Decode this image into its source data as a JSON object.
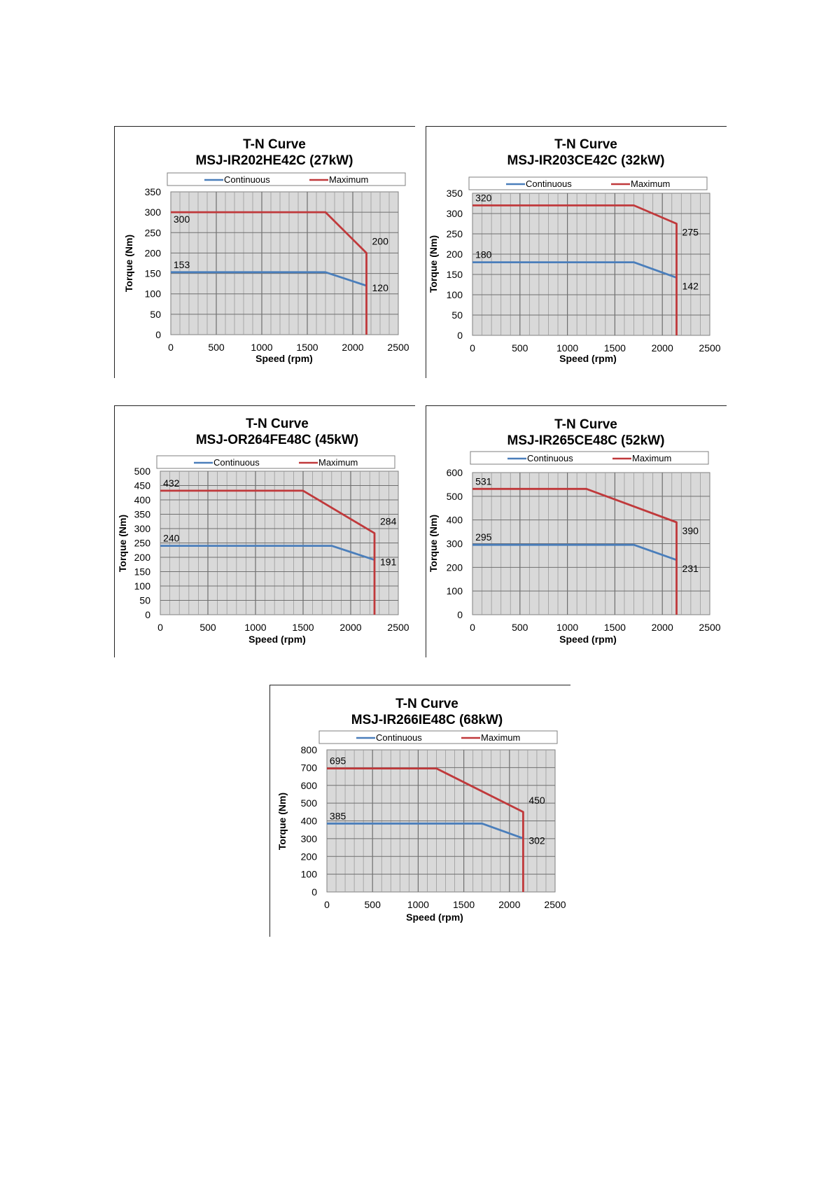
{
  "legend": {
    "continuous": "Continuous",
    "maximum": "Maximum"
  },
  "colors": {
    "continuous": "#4a7ebb",
    "maximum": "#c0393b",
    "plot_bg": "#d9d9d9",
    "grid": "#8c8c8c"
  },
  "chart_data": [
    {
      "type": "line",
      "title": "T-N Curve",
      "subtitle": "MSJ-IR202HE42C  (27kW)",
      "xlabel": "Speed (rpm)",
      "ylabel": "Torque (Nm)",
      "xlim": [
        0,
        2500
      ],
      "ylim": [
        0,
        350
      ],
      "xticks": [
        "0",
        "500",
        "1000",
        "1500",
        "2000",
        "2500"
      ],
      "yticks": [
        "0",
        "50",
        "100",
        "150",
        "200",
        "250",
        "300",
        "350"
      ],
      "series": [
        {
          "name": "Continuous",
          "x": [
            0,
            1700,
            2150
          ],
          "y": [
            153,
            153,
            120
          ]
        },
        {
          "name": "Maximum",
          "x": [
            0,
            1700,
            2150,
            2150
          ],
          "y": [
            300,
            300,
            200,
            0
          ]
        }
      ],
      "annotations": [
        {
          "text": "300",
          "x": 30,
          "y": 300,
          "pos": "below"
        },
        {
          "text": "153",
          "x": 30,
          "y": 153,
          "pos": "above"
        },
        {
          "text": "200",
          "x": 2150,
          "y": 200,
          "pos": "above-right"
        },
        {
          "text": "120",
          "x": 2150,
          "y": 120,
          "pos": "right"
        }
      ]
    },
    {
      "type": "line",
      "title": "T-N Curve",
      "subtitle": "MSJ-IR203CE42C  (32kW)",
      "xlabel": "Speed (rpm)",
      "ylabel": "Torque (Nm)",
      "xlim": [
        0,
        2500
      ],
      "ylim": [
        0,
        350
      ],
      "xticks": [
        "0",
        "500",
        "1000",
        "1500",
        "2000",
        "2500"
      ],
      "yticks": [
        "0",
        "50",
        "100",
        "150",
        "200",
        "250",
        "300",
        "350"
      ],
      "series": [
        {
          "name": "Continuous",
          "x": [
            0,
            1700,
            2150
          ],
          "y": [
            180,
            180,
            142
          ]
        },
        {
          "name": "Maximum",
          "x": [
            0,
            1700,
            2150,
            2150
          ],
          "y": [
            320,
            320,
            275,
            0
          ]
        }
      ],
      "annotations": [
        {
          "text": "320",
          "x": 30,
          "y": 320,
          "pos": "above"
        },
        {
          "text": "180",
          "x": 30,
          "y": 180,
          "pos": "above"
        },
        {
          "text": "275",
          "x": 2150,
          "y": 275,
          "pos": "below-right"
        },
        {
          "text": "142",
          "x": 2150,
          "y": 142,
          "pos": "below-right"
        }
      ]
    },
    {
      "type": "line",
      "title": "T-N Curve",
      "subtitle": "MSJ-OR264FE48C  (45kW)",
      "xlabel": "Speed (rpm)",
      "ylabel": "Torque (Nm)",
      "xlim": [
        0,
        2500
      ],
      "ylim": [
        0,
        500
      ],
      "xticks": [
        "0",
        "500",
        "1000",
        "1500",
        "2000",
        "2500"
      ],
      "yticks": [
        "0",
        "50",
        "100",
        "150",
        "200",
        "250",
        "300",
        "350",
        "400",
        "450",
        "500"
      ],
      "series": [
        {
          "name": "Continuous",
          "x": [
            0,
            1800,
            2250
          ],
          "y": [
            240,
            240,
            191
          ]
        },
        {
          "name": "Maximum",
          "x": [
            0,
            1500,
            2250,
            2250
          ],
          "y": [
            432,
            432,
            284,
            0
          ]
        }
      ],
      "annotations": [
        {
          "text": "432",
          "x": 30,
          "y": 432,
          "pos": "above"
        },
        {
          "text": "240",
          "x": 30,
          "y": 240,
          "pos": "above"
        },
        {
          "text": "284",
          "x": 2250,
          "y": 284,
          "pos": "above-right"
        },
        {
          "text": "191",
          "x": 2250,
          "y": 191,
          "pos": "right"
        }
      ]
    },
    {
      "type": "line",
      "title": "T-N Curve",
      "subtitle": "MSJ-IR265CE48C  (52kW)",
      "xlabel": "Speed (rpm)",
      "ylabel": "Torque (Nm)",
      "xlim": [
        0,
        2500
      ],
      "ylim": [
        0,
        600
      ],
      "xticks": [
        "0",
        "500",
        "1000",
        "1500",
        "2000",
        "2500"
      ],
      "yticks": [
        "0",
        "100",
        "200",
        "300",
        "400",
        "500",
        "600"
      ],
      "series": [
        {
          "name": "Continuous",
          "x": [
            0,
            1700,
            2150
          ],
          "y": [
            295,
            295,
            231
          ]
        },
        {
          "name": "Maximum",
          "x": [
            0,
            1200,
            2150,
            2150
          ],
          "y": [
            531,
            531,
            390,
            0
          ]
        }
      ],
      "annotations": [
        {
          "text": "531",
          "x": 30,
          "y": 531,
          "pos": "above"
        },
        {
          "text": "295",
          "x": 30,
          "y": 295,
          "pos": "above"
        },
        {
          "text": "390",
          "x": 2150,
          "y": 390,
          "pos": "below-right"
        },
        {
          "text": "231",
          "x": 2150,
          "y": 231,
          "pos": "below-right"
        }
      ]
    },
    {
      "type": "line",
      "title": "T-N Curve",
      "subtitle": "MSJ-IR266IE48C  (68kW)",
      "xlabel": "Speed (rpm)",
      "ylabel": "Torque (Nm)",
      "xlim": [
        0,
        2500
      ],
      "ylim": [
        0,
        800
      ],
      "xticks": [
        "0",
        "500",
        "1000",
        "1500",
        "2000",
        "2500"
      ],
      "yticks": [
        "0",
        "100",
        "200",
        "300",
        "400",
        "500",
        "600",
        "700",
        "800"
      ],
      "series": [
        {
          "name": "Continuous",
          "x": [
            0,
            1700,
            2150
          ],
          "y": [
            385,
            385,
            302
          ]
        },
        {
          "name": "Maximum",
          "x": [
            0,
            1200,
            2150,
            2150
          ],
          "y": [
            695,
            695,
            450,
            0
          ]
        }
      ],
      "annotations": [
        {
          "text": "695",
          "x": 30,
          "y": 695,
          "pos": "above"
        },
        {
          "text": "385",
          "x": 30,
          "y": 385,
          "pos": "above"
        },
        {
          "text": "450",
          "x": 2150,
          "y": 450,
          "pos": "above-right"
        },
        {
          "text": "302",
          "x": 2150,
          "y": 302,
          "pos": "right"
        }
      ]
    }
  ]
}
